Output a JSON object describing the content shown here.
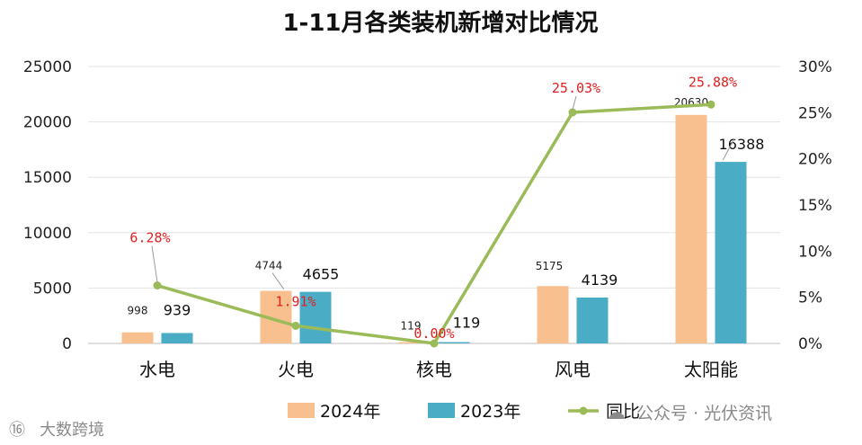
{
  "chart_data": {
    "type": "bar",
    "title": "1-11月各类装机新增对比情况",
    "categories": [
      "水电",
      "火电",
      "核电",
      "风电",
      "太阳能"
    ],
    "series": [
      {
        "name": "2024年",
        "type": "bar",
        "axis": "left",
        "color": "#F8C08E",
        "values": [
          998,
          4744,
          119,
          5175,
          20630
        ],
        "labels": [
          "998",
          "4744",
          "119",
          "5175",
          "20630"
        ]
      },
      {
        "name": "2023年",
        "type": "bar",
        "axis": "left",
        "color": "#4BACC6",
        "values": [
          939,
          4655,
          119,
          4139,
          16388
        ],
        "labels": [
          "939",
          "4655",
          "119",
          "4139",
          "16388"
        ]
      },
      {
        "name": "同比",
        "type": "line",
        "axis": "right",
        "color": "#9BBB59",
        "values": [
          6.28,
          1.91,
          0.0,
          25.03,
          25.88
        ],
        "labels": [
          "6.28%",
          "1.91%",
          "0.00%",
          "25.03%",
          "25.88%"
        ]
      }
    ],
    "y_left": {
      "min": 0,
      "max": 25000,
      "ticks": [
        "0",
        "5000",
        "10000",
        "15000",
        "20000",
        "25000"
      ]
    },
    "y_right": {
      "min": 0,
      "max": 30,
      "ticks": [
        "0%",
        "5%",
        "10%",
        "15%",
        "20%",
        "25%",
        "30%"
      ]
    },
    "grid": true,
    "legend_position": "bottom"
  },
  "watermarks": {
    "left": "大数跨境",
    "right": "公众号 · 光伏资讯"
  }
}
